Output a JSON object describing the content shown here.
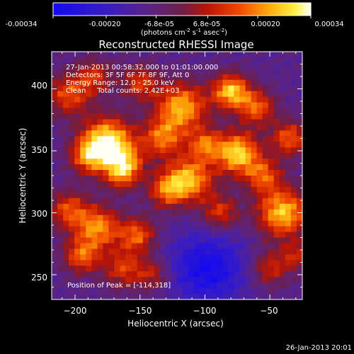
{
  "colorbar": {
    "tick_labels": [
      "-0.00034",
      "-0.00020",
      "-6.8e-05",
      "6.8e-05",
      "0.00020",
      "0.00034"
    ],
    "range": [
      -0.00034,
      0.00034
    ],
    "units_prefix": "(photons cm",
    "units_sup1": "-2",
    "units_mid": " s",
    "units_sup2": "-1",
    "units_mid2": " asec",
    "units_sup3": "-2",
    "units_suffix": ")",
    "colormap": "blue-purple-red-yellow-white"
  },
  "plot": {
    "title": "Reconstructed RHESSI Image",
    "xlabel": "Heliocentric X (arcsec)",
    "ylabel": "Heliocentric Y (arcsec)",
    "xlim": [
      -218,
      -25
    ],
    "ylim": [
      230,
      430
    ],
    "x_ticks": [
      -200,
      -150,
      -100,
      -50
    ],
    "y_ticks": [
      250,
      300,
      350,
      400
    ],
    "x_tick_labels": [
      "−200",
      "−150",
      "−100",
      "−50"
    ],
    "y_tick_labels": [
      "250",
      "300",
      "350",
      "400"
    ]
  },
  "annotations": {
    "line1": "27-Jan-2013 00:58:32.000 to 01:01:00.000",
    "line2": "Detectors: 3F 5F 6F 7F 8F 9F, Att 0",
    "line3": "Energy Range: 12.0 - 25.0 keV",
    "line4": "Clean     Total counts: 2.42E+03",
    "peak": "Position of Peak = [-114,318]"
  },
  "footer": {
    "timestamp": "26-Jan-2013 20:01"
  },
  "image": {
    "grid": [
      44,
      44
    ],
    "peak_position": [
      -114,
      318
    ]
  }
}
